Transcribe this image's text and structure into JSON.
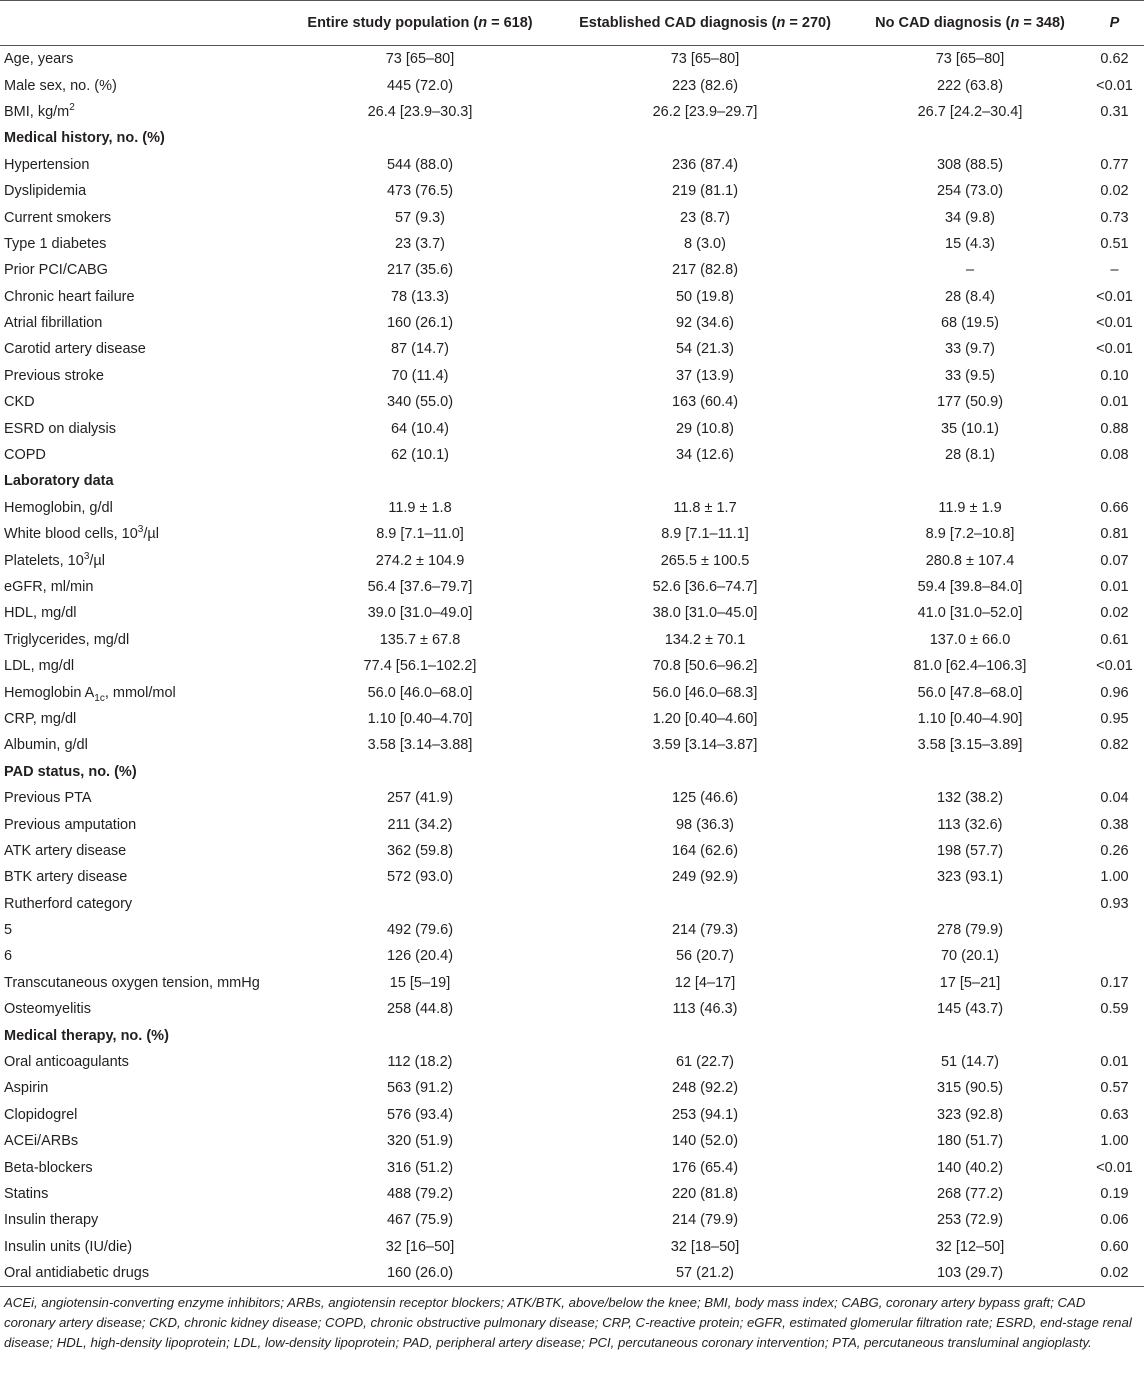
{
  "table": {
    "header": [
      null,
      [
        "Entire study population (",
        {
          "i": "n"
        },
        " = 618)"
      ],
      [
        "Established CAD diagnosis (",
        {
          "i": "n"
        },
        " = 270)"
      ],
      [
        "No CAD diagnosis (",
        {
          "i": "n"
        },
        " = 348)"
      ],
      [
        {
          "i": "P"
        }
      ]
    ],
    "rows": [
      {
        "label": "Age, years",
        "cells": [
          "73 [65–80]",
          "73 [65–80]",
          "73 [65–80]",
          "0.62"
        ]
      },
      {
        "label": "Male sex, no. (%)",
        "cells": [
          "445 (72.0)",
          "223 (82.6)",
          "222 (63.8)",
          "<0.01"
        ]
      },
      {
        "label": [
          "BMI, kg/m",
          {
            "sup": "2"
          }
        ],
        "cells": [
          "26.4 [23.9–30.3]",
          "26.2 [23.9–29.7]",
          "26.7 [24.2–30.4]",
          "0.31"
        ]
      },
      {
        "section": "Medical history, no. (%)"
      },
      {
        "label": "Hypertension",
        "cells": [
          "544 (88.0)",
          "236 (87.4)",
          "308 (88.5)",
          "0.77"
        ]
      },
      {
        "label": "Dyslipidemia",
        "cells": [
          "473 (76.5)",
          "219 (81.1)",
          "254 (73.0)",
          "0.02"
        ]
      },
      {
        "label": "Current smokers",
        "cells": [
          "57 (9.3)",
          "23 (8.7)",
          "34 (9.8)",
          "0.73"
        ]
      },
      {
        "label": "Type 1 diabetes",
        "cells": [
          "23 (3.7)",
          "8 (3.0)",
          "15 (4.3)",
          "0.51"
        ]
      },
      {
        "label": "Prior PCI/CABG",
        "cells": [
          "217 (35.6)",
          "217 (82.8)",
          "–",
          "–"
        ]
      },
      {
        "label": "Chronic heart failure",
        "cells": [
          "78 (13.3)",
          "50 (19.8)",
          "28 (8.4)",
          "<0.01"
        ]
      },
      {
        "label": "Atrial fibrillation",
        "cells": [
          "160 (26.1)",
          "92 (34.6)",
          "68 (19.5)",
          "<0.01"
        ]
      },
      {
        "label": "Carotid artery disease",
        "cells": [
          "87 (14.7)",
          "54 (21.3)",
          "33 (9.7)",
          "<0.01"
        ]
      },
      {
        "label": "Previous stroke",
        "cells": [
          "70 (11.4)",
          "37 (13.9)",
          "33 (9.5)",
          "0.10"
        ]
      },
      {
        "label": "CKD",
        "cells": [
          "340 (55.0)",
          "163 (60.4)",
          "177 (50.9)",
          "0.01"
        ]
      },
      {
        "label": "ESRD on dialysis",
        "cells": [
          "64 (10.4)",
          "29 (10.8)",
          "35 (10.1)",
          "0.88"
        ]
      },
      {
        "label": "COPD",
        "cells": [
          "62 (10.1)",
          "34 (12.6)",
          "28 (8.1)",
          "0.08"
        ]
      },
      {
        "section": "Laboratory data"
      },
      {
        "label": "Hemoglobin, g/dl",
        "cells": [
          "11.9 ± 1.8",
          "11.8 ± 1.7",
          "11.9 ± 1.9",
          "0.66"
        ]
      },
      {
        "label": [
          "White blood cells, 10",
          {
            "sup": "3"
          },
          "/µl"
        ],
        "cells": [
          "8.9 [7.1–11.0]",
          "8.9 [7.1–11.1]",
          "8.9 [7.2–10.8]",
          "0.81"
        ]
      },
      {
        "label": [
          "Platelets, 10",
          {
            "sup": "3"
          },
          "/µl"
        ],
        "cells": [
          "274.2 ± 104.9",
          "265.5 ± 100.5",
          "280.8 ± 107.4",
          "0.07"
        ]
      },
      {
        "label": "eGFR, ml/min",
        "cells": [
          "56.4 [37.6–79.7]",
          "52.6 [36.6–74.7]",
          "59.4 [39.8–84.0]",
          "0.01"
        ]
      },
      {
        "label": "HDL, mg/dl",
        "cells": [
          "39.0 [31.0–49.0]",
          "38.0 [31.0–45.0]",
          "41.0 [31.0–52.0]",
          "0.02"
        ]
      },
      {
        "label": "Triglycerides, mg/dl",
        "cells": [
          "135.7 ± 67.8",
          "134.2 ± 70.1",
          "137.0 ± 66.0",
          "0.61"
        ]
      },
      {
        "label": "LDL, mg/dl",
        "cells": [
          "77.4 [56.1–102.2]",
          "70.8 [50.6–96.2]",
          "81.0 [62.4–106.3]",
          "<0.01"
        ]
      },
      {
        "label": [
          "Hemoglobin A",
          {
            "sub": "1c"
          },
          ", mmol/mol"
        ],
        "cells": [
          "56.0 [46.0–68.0]",
          "56.0 [46.0–68.3]",
          "56.0 [47.8–68.0]",
          "0.96"
        ]
      },
      {
        "label": "CRP, mg/dl",
        "cells": [
          "1.10 [0.40–4.70]",
          "1.20 [0.40–4.60]",
          "1.10 [0.40–4.90]",
          "0.95"
        ]
      },
      {
        "label": "Albumin, g/dl",
        "cells": [
          "3.58 [3.14–3.88]",
          "3.59 [3.14–3.87]",
          "3.58 [3.15–3.89]",
          "0.82"
        ]
      },
      {
        "section": "PAD status, no. (%)"
      },
      {
        "label": "Previous PTA",
        "cells": [
          "257 (41.9)",
          "125 (46.6)",
          "132 (38.2)",
          "0.04"
        ]
      },
      {
        "label": "Previous amputation",
        "cells": [
          "211 (34.2)",
          "98 (36.3)",
          "113 (32.6)",
          "0.38"
        ]
      },
      {
        "label": "ATK artery disease",
        "cells": [
          "362 (59.8)",
          "164 (62.6)",
          "198 (57.7)",
          "0.26"
        ]
      },
      {
        "label": "BTK artery disease",
        "cells": [
          "572 (93.0)",
          "249 (92.9)",
          "323 (93.1)",
          "1.00"
        ]
      },
      {
        "label": "Rutherford category",
        "cells": [
          null,
          null,
          null,
          "0.93"
        ]
      },
      {
        "label": "5",
        "cells": [
          "492 (79.6)",
          "214 (79.3)",
          "278 (79.9)",
          null
        ]
      },
      {
        "label": "6",
        "cells": [
          "126 (20.4)",
          "56 (20.7)",
          "70 (20.1)",
          null
        ]
      },
      {
        "label": "Transcutaneous oxygen tension, mmHg",
        "cells": [
          "15 [5–19]",
          "12 [4–17]",
          "17 [5–21]",
          "0.17"
        ]
      },
      {
        "label": "Osteomyelitis",
        "cells": [
          "258 (44.8)",
          "113 (46.3)",
          "145 (43.7)",
          "0.59"
        ]
      },
      {
        "section": "Medical therapy, no. (%)"
      },
      {
        "label": "Oral anticoagulants",
        "cells": [
          "112 (18.2)",
          "61 (22.7)",
          "51 (14.7)",
          "0.01"
        ]
      },
      {
        "label": "Aspirin",
        "cells": [
          "563 (91.2)",
          "248 (92.2)",
          "315 (90.5)",
          "0.57"
        ]
      },
      {
        "label": "Clopidogrel",
        "cells": [
          "576 (93.4)",
          "253 (94.1)",
          "323 (92.8)",
          "0.63"
        ]
      },
      {
        "label": "ACEi/ARBs",
        "cells": [
          "320 (51.9)",
          "140 (52.0)",
          "180 (51.7)",
          "1.00"
        ]
      },
      {
        "label": "Beta-blockers",
        "cells": [
          "316 (51.2)",
          "176 (65.4)",
          "140 (40.2)",
          "<0.01"
        ]
      },
      {
        "label": "Statins",
        "cells": [
          "488 (79.2)",
          "220 (81.8)",
          "268 (77.2)",
          "0.19"
        ]
      },
      {
        "label": "Insulin therapy",
        "cells": [
          "467 (75.9)",
          "214 (79.9)",
          "253 (72.9)",
          "0.06"
        ]
      },
      {
        "label": "Insulin units (IU/die)",
        "cells": [
          "32 [16–50]",
          "32 [18–50]",
          "32 [12–50]",
          "0.60"
        ]
      },
      {
        "label": "Oral antidiabetic drugs",
        "cells": [
          "160 (26.0)",
          "57 (21.2)",
          "103 (29.7)",
          "0.02"
        ]
      }
    ],
    "footnote": "ACEi, angiotensin-converting enzyme inhibitors; ARBs, angiotensin receptor blockers; ATK/BTK, above/below the knee; BMI, body mass index; CABG, coronary artery bypass graft; CAD coronary artery disease; CKD, chronic kidney disease; COPD, chronic obstructive pulmonary disease; CRP, C-reactive protein; eGFR, estimated glomerular filtration rate; ESRD, end-stage renal disease; HDL, high-density lipoprotein; LDL, low-density lipoprotein; PAD, peripheral artery disease; PCI, percutaneous coronary intervention; PTA, percutaneous transluminal angioplasty."
  }
}
